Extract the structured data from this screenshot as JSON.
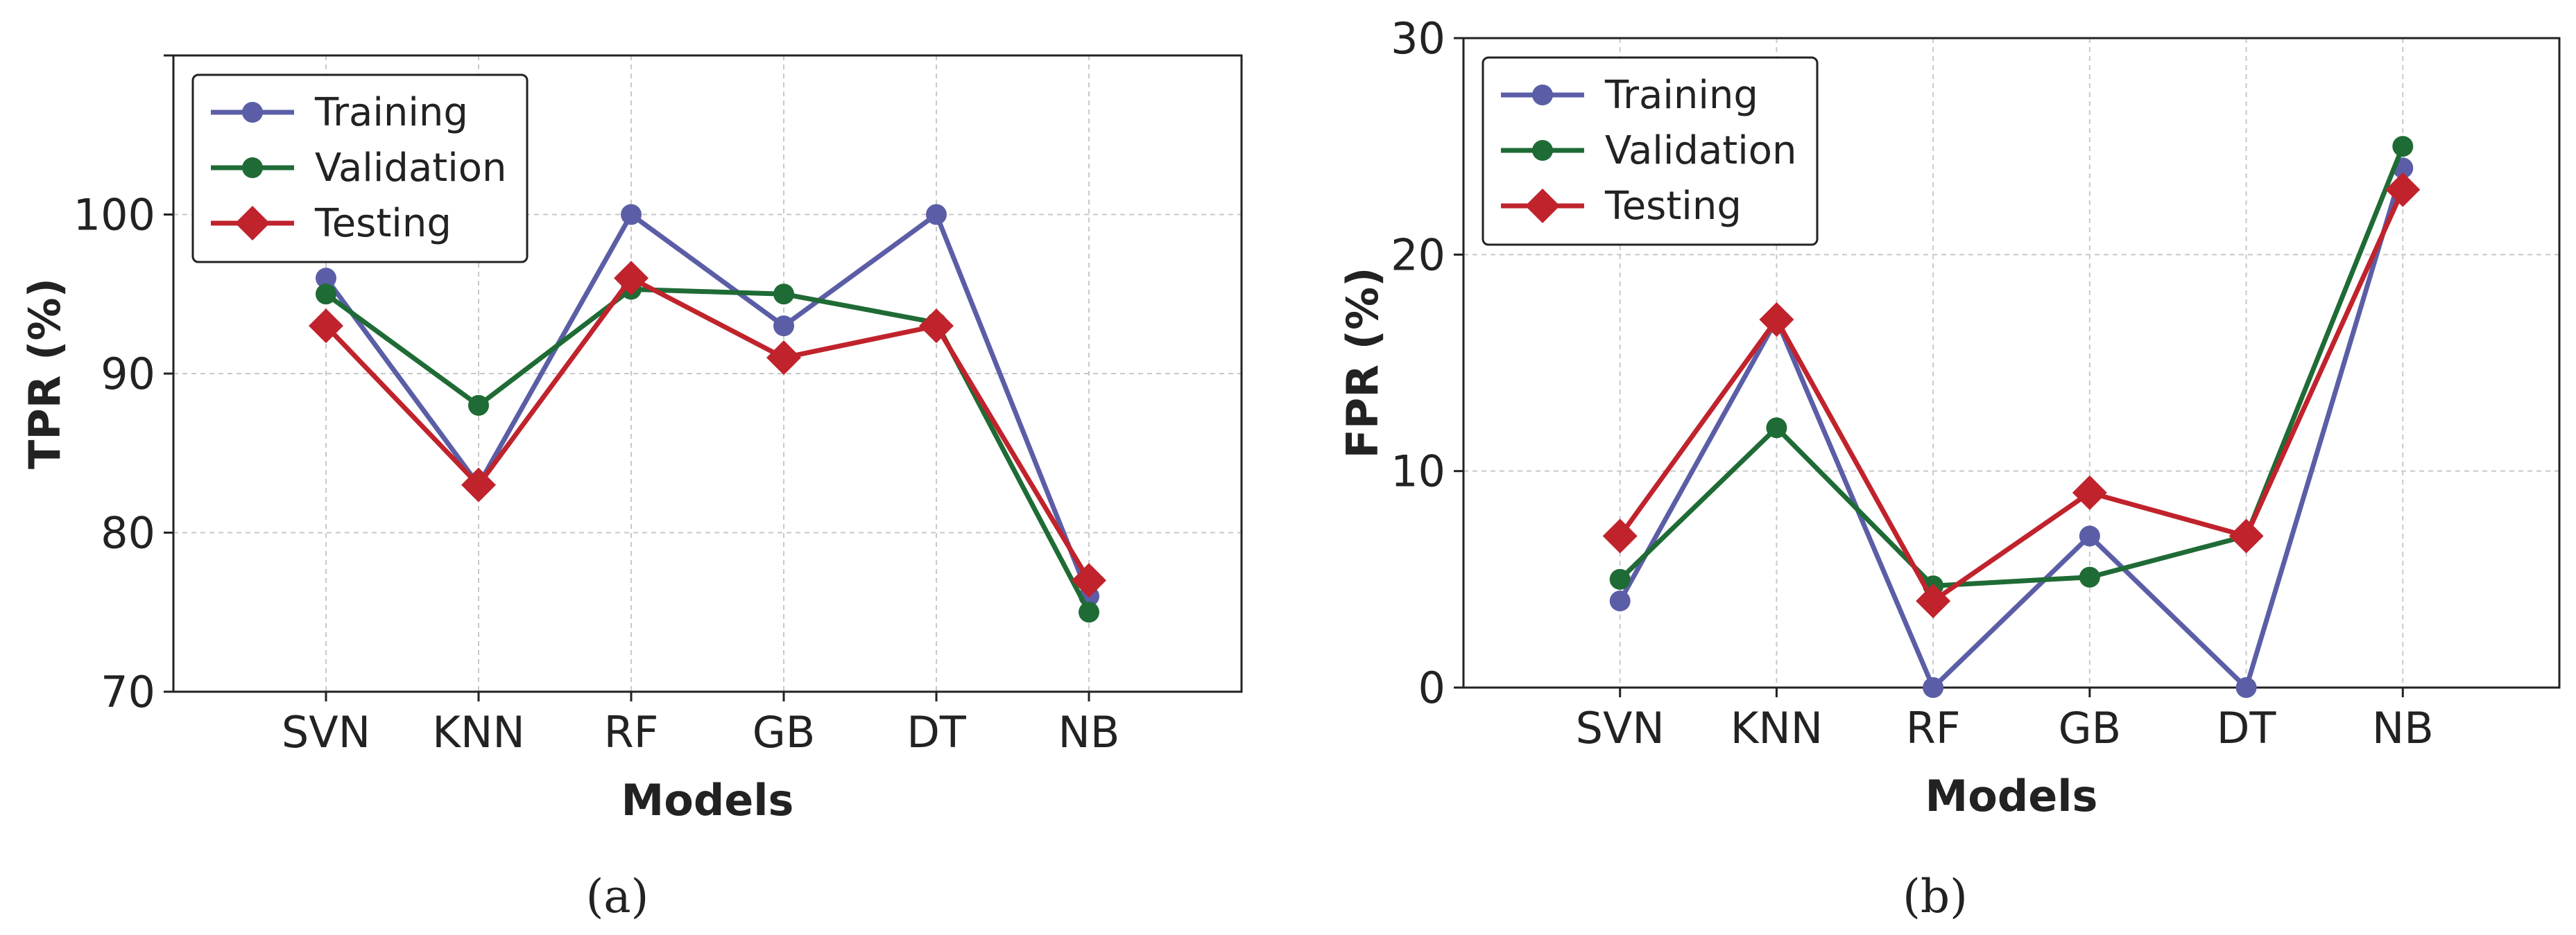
{
  "chart_data": [
    {
      "type": "line",
      "caption": "(a)",
      "xlabel": "Models",
      "ylabel": "TPR (%)",
      "categories": [
        "SVN",
        "KNN",
        "RF",
        "GB",
        "DT",
        "NB"
      ],
      "ylim": [
        70,
        110
      ],
      "yticks": [
        70,
        80,
        90,
        100
      ],
      "grid": true,
      "legend_position": "top-left",
      "series": [
        {
          "name": "Training",
          "color": "#5b5ea6",
          "marker": "circle",
          "values": [
            96,
            83,
            100,
            93,
            100,
            76
          ]
        },
        {
          "name": "Validation",
          "color": "#1f6b35",
          "marker": "circle",
          "values": [
            95,
            88,
            95.3,
            95,
            93.2,
            75
          ]
        },
        {
          "name": "Testing",
          "color": "#c0232c",
          "marker": "diamond",
          "values": [
            93,
            83,
            96,
            91,
            93,
            77
          ]
        }
      ]
    },
    {
      "type": "line",
      "caption": "(b)",
      "xlabel": "Models",
      "ylabel": "FPR (%)",
      "categories": [
        "SVN",
        "KNN",
        "RF",
        "GB",
        "DT",
        "NB"
      ],
      "ylim": [
        0,
        30
      ],
      "yticks": [
        0,
        10,
        20,
        30
      ],
      "grid": true,
      "legend_position": "top-left",
      "series": [
        {
          "name": "Training",
          "color": "#5b5ea6",
          "marker": "circle",
          "values": [
            4,
            17,
            0,
            7,
            0,
            24
          ]
        },
        {
          "name": "Validation",
          "color": "#1f6b35",
          "marker": "circle",
          "values": [
            5,
            12,
            4.7,
            5.1,
            7,
            25
          ]
        },
        {
          "name": "Testing",
          "color": "#c0232c",
          "marker": "diamond",
          "values": [
            7,
            17,
            4,
            9,
            7,
            23
          ]
        }
      ]
    }
  ]
}
